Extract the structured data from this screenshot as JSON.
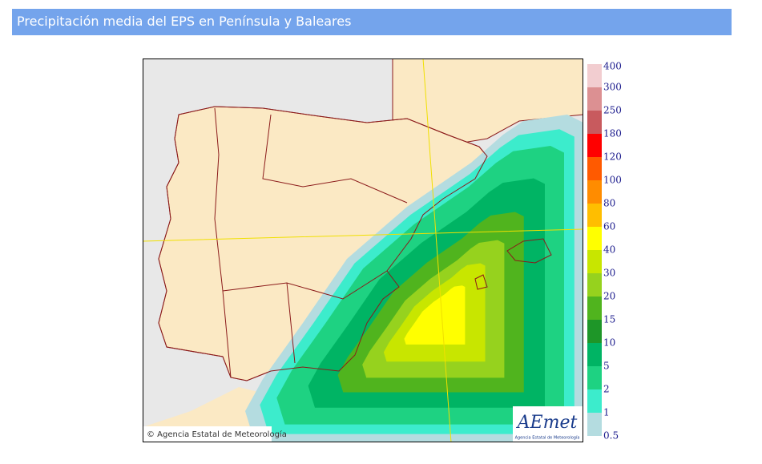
{
  "header": {
    "title": "Precipitación media del EPS en Península y Baleares"
  },
  "legend": {
    "levels": [
      400,
      300,
      250,
      180,
      120,
      100,
      80,
      60,
      40,
      30,
      20,
      15,
      10,
      5,
      2,
      1,
      0.5
    ],
    "colors": [
      "#f2cdd0",
      "#dc9092",
      "#c85a5e",
      "#ff0000",
      "#ff5a00",
      "#ff8c00",
      "#ffbe00",
      "#ffff00",
      "#c8e600",
      "#96d21e",
      "#50b41e",
      "#1e9628",
      "#00b464",
      "#1ed282",
      "#3ceccc",
      "#b4dce0"
    ]
  },
  "map": {
    "copyright": "© Agencia Estatal de Meteorología",
    "logo": "AEmet",
    "logo_caption": "Agencia Estatal de Meteorología"
  }
}
